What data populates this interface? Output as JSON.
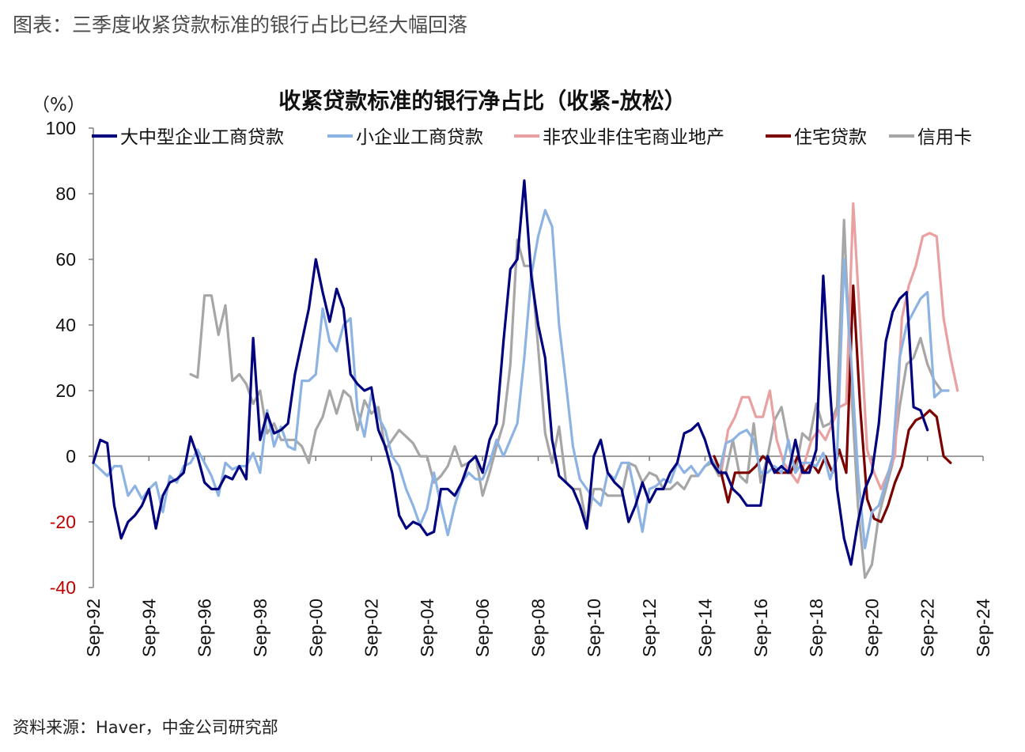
{
  "caption": "图表：三季度收紧贷款标准的银行占比已经大幅回落",
  "source": "资料来源：Haver，中金公司研究部",
  "chart_data": {
    "type": "line",
    "title": "收紧贷款标准的银行净占比（收紧-放松）",
    "ylabel": "（%）",
    "ylim": [
      -40,
      100
    ],
    "yticks": [
      100,
      80,
      60,
      40,
      20,
      0,
      -20,
      -40
    ],
    "negative_tick_color": "#c00000",
    "grid": false,
    "legend_position": "top",
    "x_start": 1992.67,
    "x_end": 2024.67,
    "xticks": [
      {
        "label": "Sep-92",
        "x": 1992.67
      },
      {
        "label": "Sep-94",
        "x": 1994.67
      },
      {
        "label": "Sep-96",
        "x": 1996.67
      },
      {
        "label": "Sep-98",
        "x": 1998.67
      },
      {
        "label": "Sep-00",
        "x": 2000.67
      },
      {
        "label": "Sep-02",
        "x": 2002.67
      },
      {
        "label": "Sep-04",
        "x": 2004.67
      },
      {
        "label": "Sep-06",
        "x": 2006.67
      },
      {
        "label": "Sep-08",
        "x": 2008.67
      },
      {
        "label": "Sep-10",
        "x": 2010.67
      },
      {
        "label": "Sep-12",
        "x": 2012.67
      },
      {
        "label": "Sep-14",
        "x": 2014.67
      },
      {
        "label": "Sep-16",
        "x": 2016.67
      },
      {
        "label": "Sep-18",
        "x": 2018.67
      },
      {
        "label": "Sep-20",
        "x": 2020.67
      },
      {
        "label": "Sep-22",
        "x": 2022.67
      },
      {
        "label": "Sep-24",
        "x": 2024.67
      }
    ],
    "series": [
      {
        "name": "信用卡",
        "color": "#a6a6a6",
        "x_start": 1996.17,
        "values": [
          25,
          24,
          49,
          49,
          37,
          46,
          23,
          25,
          22,
          16,
          20,
          7,
          10,
          5,
          5,
          5,
          3,
          -2,
          8,
          12,
          20,
          13,
          20,
          18,
          8,
          17,
          13,
          15,
          2,
          5,
          8,
          6,
          4,
          0,
          0,
          -8,
          -6,
          -3,
          3,
          -3,
          -2,
          0,
          -12,
          -5,
          3,
          10,
          28,
          66,
          58,
          58,
          33,
          7,
          -2,
          9,
          -8,
          -10,
          -10,
          -21,
          -10,
          -10,
          -12,
          -12,
          -12,
          -2,
          -3,
          -8,
          -5,
          -6,
          -10,
          -10,
          -8,
          -10,
          -6,
          -6,
          -3,
          -2,
          -6,
          -5,
          5,
          -6,
          -8,
          10,
          -8,
          0,
          11,
          15,
          4,
          -5,
          7,
          5,
          16,
          9,
          10,
          15,
          72,
          22,
          -15,
          -37,
          -33,
          -18,
          -10,
          -2,
          15,
          28,
          30,
          36,
          28,
          23,
          20
        ]
      },
      {
        "name": "非农业非住宅商业地产",
        "color": "#e9a0a0",
        "x_start": 2015.0,
        "values": [
          -2,
          -5,
          8,
          12,
          18,
          18,
          12,
          12,
          20,
          5,
          -2,
          -5,
          -8,
          -2,
          5,
          8,
          5,
          10,
          15,
          16,
          77,
          40,
          2,
          -5,
          -10,
          -5,
          0,
          42,
          52,
          58,
          67,
          68,
          67,
          42,
          30,
          20
        ]
      },
      {
        "name": "住宅贷款",
        "color": "#7b0000",
        "x_start": 2015.0,
        "values": [
          0,
          -5,
          -14,
          -5,
          -5,
          -5,
          -3,
          0,
          -2,
          -5,
          -5,
          -5,
          0,
          -5,
          -2,
          -5,
          0,
          -5,
          2,
          -5,
          52,
          15,
          -13,
          -19,
          -20,
          -15,
          -8,
          -3,
          8,
          11,
          12,
          14,
          12,
          0,
          -2
        ]
      },
      {
        "name": "小企业工商贷款",
        "color": "#8db3e2",
        "x_start": 1992.67,
        "values": [
          -2,
          -4,
          -6,
          -3,
          -3,
          -12,
          -9,
          -13,
          -10,
          -8,
          -17,
          -6,
          -8,
          -3,
          -2,
          2,
          -2,
          -6,
          -12,
          -2,
          -4,
          -3,
          -3,
          1,
          -5,
          14,
          3,
          9,
          3,
          2,
          23,
          23,
          25,
          45,
          35,
          32,
          40,
          42,
          14,
          6,
          19,
          12,
          8,
          0,
          -3,
          -10,
          -15,
          -21,
          -16,
          -5,
          -15,
          -24,
          -15,
          -8,
          -5,
          -7,
          -7,
          -2,
          5,
          0,
          5,
          10,
          30,
          55,
          67,
          75,
          70,
          40,
          22,
          3,
          -7,
          -10,
          -13,
          -15,
          -5,
          -7,
          -2,
          -2,
          -12,
          -23,
          -10,
          -9,
          -7,
          -8,
          -2,
          -5,
          -3,
          -6,
          -3,
          -1,
          -5,
          4,
          5,
          7,
          8,
          5,
          -5,
          -5,
          -3,
          -5,
          5,
          -5,
          -2,
          -2,
          -3,
          1,
          -7,
          0,
          60,
          30,
          -5,
          -28,
          -17,
          -15,
          -8,
          0,
          30,
          40,
          44,
          48,
          50,
          18,
          20,
          20
        ]
      },
      {
        "name": "大中型企业工商贷款",
        "color": "#00007f",
        "x_start": 1992.67,
        "values": [
          -2,
          5,
          4,
          -15,
          -25,
          -20,
          -18,
          -15,
          -10,
          -22,
          -12,
          -8,
          -7,
          -5,
          6,
          0,
          -8,
          -10,
          -10,
          -6,
          -7,
          -3,
          -7,
          36,
          5,
          13,
          7,
          8,
          10,
          25,
          35,
          45,
          60,
          50,
          41,
          51,
          45,
          25,
          22,
          20,
          21,
          8,
          3,
          -5,
          -18,
          -22,
          -20,
          -21,
          -24,
          -23,
          -10,
          -10,
          -12,
          -8,
          -2,
          0,
          -5,
          5,
          10,
          35,
          57,
          60,
          84,
          55,
          40,
          30,
          5,
          -6,
          -8,
          -10,
          -15,
          -22,
          0,
          5,
          -5,
          -8,
          -10,
          -20,
          -15,
          -8,
          -14,
          -10,
          -10,
          -5,
          -2,
          7,
          8,
          10,
          5,
          -2,
          -5,
          -5,
          -10,
          -12,
          -15,
          -15,
          -15,
          0,
          -5,
          -3,
          -5,
          5,
          -5,
          -5,
          2,
          55,
          20,
          -10,
          -25,
          -33,
          -20,
          -10,
          -5,
          10,
          35,
          44,
          48,
          50,
          15,
          14,
          8
        ]
      }
    ]
  }
}
